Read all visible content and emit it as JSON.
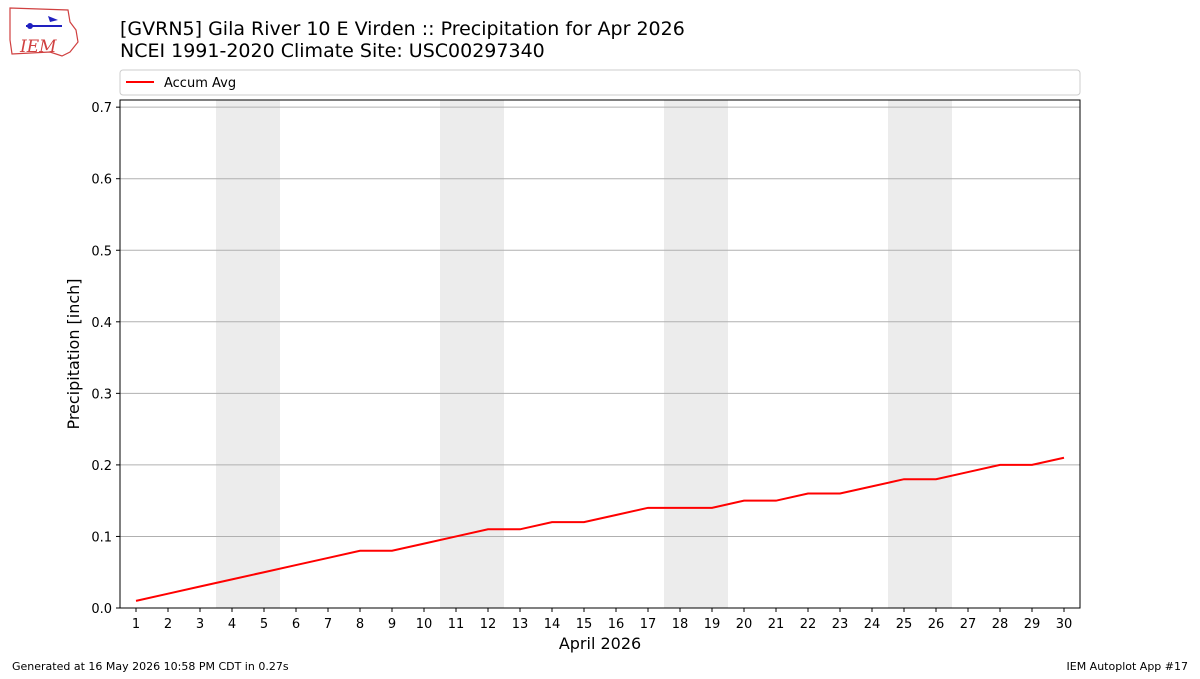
{
  "logo_text": "IEM",
  "footer": {
    "left": "Generated at 16 May 2026 10:58 PM CDT in 0.27s",
    "right": "IEM Autoplot App #17"
  },
  "chart_data": {
    "type": "line",
    "title": "[GVRN5] Gila River 10 E Virden :: Precipitation for Apr 2026",
    "subtitle": "NCEI 1991-2020 Climate Site: USC00297340",
    "x_label": "April 2026",
    "y_label": "Precipitation [inch]",
    "x": [
      1,
      2,
      3,
      4,
      5,
      6,
      7,
      8,
      9,
      10,
      11,
      12,
      13,
      14,
      15,
      16,
      17,
      18,
      19,
      20,
      21,
      22,
      23,
      24,
      25,
      26,
      27,
      28,
      29,
      30
    ],
    "series": [
      {
        "name": "Accum Avg",
        "color": "#ff0000",
        "values": [
          0.01,
          0.02,
          0.03,
          0.04,
          0.05,
          0.06,
          0.07,
          0.08,
          0.08,
          0.09,
          0.1,
          0.11,
          0.11,
          0.12,
          0.12,
          0.13,
          0.14,
          0.14,
          0.14,
          0.15,
          0.15,
          0.16,
          0.16,
          0.17,
          0.18,
          0.18,
          0.19,
          0.2,
          0.2,
          0.21
        ]
      }
    ],
    "xlim": [
      0.5,
      30.5
    ],
    "ylim": [
      0,
      0.71
    ],
    "xticks": [
      1,
      2,
      3,
      4,
      5,
      6,
      7,
      8,
      9,
      10,
      11,
      12,
      13,
      14,
      15,
      16,
      17,
      18,
      19,
      20,
      21,
      22,
      23,
      24,
      25,
      26,
      27,
      28,
      29,
      30
    ],
    "yticks": [
      {
        "value": 0,
        "label": "0.0"
      },
      0.1,
      0.2,
      0.3,
      0.4,
      0.5,
      0.6,
      0.7
    ],
    "shaded_x_spans": [
      [
        3.5,
        5.5
      ],
      [
        10.5,
        12.5
      ],
      [
        17.5,
        19.5
      ],
      [
        24.5,
        26.5
      ]
    ],
    "shade_color": "#ececec",
    "grid": true,
    "legend": "top"
  }
}
